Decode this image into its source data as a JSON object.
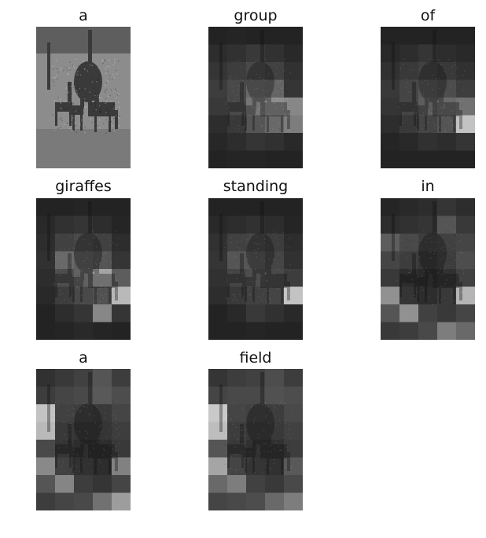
{
  "panels": [
    {
      "word": "a",
      "kind": "photo",
      "attention": []
    },
    {
      "word": "group",
      "kind": "attention",
      "attention": [
        [
          0.05,
          0.06,
          0.05,
          0.05,
          0.05
        ],
        [
          0.1,
          0.12,
          0.16,
          0.12,
          0.08
        ],
        [
          0.14,
          0.18,
          0.24,
          0.2,
          0.12
        ],
        [
          0.18,
          0.24,
          0.4,
          0.38,
          0.14
        ],
        [
          0.16,
          0.24,
          0.46,
          0.58,
          0.55
        ],
        [
          0.1,
          0.16,
          0.3,
          0.4,
          0.5
        ],
        [
          0.07,
          0.1,
          0.14,
          0.12,
          0.08
        ],
        [
          0.05,
          0.06,
          0.06,
          0.05,
          0.05
        ]
      ]
    },
    {
      "word": "of",
      "kind": "attention",
      "attention": [
        [
          0.05,
          0.05,
          0.05,
          0.05,
          0.05
        ],
        [
          0.08,
          0.1,
          0.14,
          0.1,
          0.08
        ],
        [
          0.12,
          0.16,
          0.2,
          0.16,
          0.12
        ],
        [
          0.16,
          0.22,
          0.3,
          0.26,
          0.18
        ],
        [
          0.14,
          0.22,
          0.34,
          0.4,
          0.44
        ],
        [
          0.1,
          0.16,
          0.22,
          0.3,
          0.85
        ],
        [
          0.06,
          0.08,
          0.12,
          0.1,
          0.14
        ],
        [
          0.05,
          0.05,
          0.05,
          0.05,
          0.05
        ]
      ]
    },
    {
      "word": "giraffes",
      "kind": "attention",
      "attention": [
        [
          0.05,
          0.05,
          0.06,
          0.05,
          0.05
        ],
        [
          0.08,
          0.12,
          0.14,
          0.1,
          0.06
        ],
        [
          0.1,
          0.2,
          0.24,
          0.2,
          0.1
        ],
        [
          0.12,
          0.4,
          0.34,
          0.3,
          0.14
        ],
        [
          0.1,
          0.26,
          0.36,
          0.7,
          0.34
        ],
        [
          0.08,
          0.18,
          0.24,
          0.28,
          0.8
        ],
        [
          0.05,
          0.1,
          0.14,
          0.55,
          0.14
        ],
        [
          0.05,
          0.06,
          0.08,
          0.06,
          0.05
        ]
      ]
    },
    {
      "word": "standing",
      "kind": "attention",
      "attention": [
        [
          0.05,
          0.05,
          0.05,
          0.05,
          0.05
        ],
        [
          0.08,
          0.1,
          0.12,
          0.1,
          0.06
        ],
        [
          0.12,
          0.2,
          0.22,
          0.18,
          0.1
        ],
        [
          0.14,
          0.3,
          0.3,
          0.22,
          0.12
        ],
        [
          0.12,
          0.22,
          0.26,
          0.24,
          0.18
        ],
        [
          0.1,
          0.16,
          0.2,
          0.22,
          0.85
        ],
        [
          0.05,
          0.08,
          0.16,
          0.12,
          0.08
        ],
        [
          0.05,
          0.05,
          0.06,
          0.05,
          0.05
        ]
      ]
    },
    {
      "word": "in",
      "kind": "attention",
      "attention": [
        [
          0.06,
          0.08,
          0.1,
          0.14,
          0.1
        ],
        [
          0.1,
          0.12,
          0.14,
          0.3,
          0.16
        ],
        [
          0.34,
          0.24,
          0.18,
          0.2,
          0.22
        ],
        [
          0.22,
          0.18,
          0.14,
          0.18,
          0.26
        ],
        [
          0.16,
          0.1,
          0.08,
          0.12,
          0.2
        ],
        [
          0.6,
          0.14,
          0.1,
          0.16,
          0.78
        ],
        [
          0.3,
          0.6,
          0.2,
          0.16,
          0.22
        ],
        [
          0.16,
          0.18,
          0.24,
          0.5,
          0.4
        ]
      ]
    },
    {
      "word": "a",
      "kind": "attention",
      "attention": [
        [
          0.12,
          0.16,
          0.2,
          0.3,
          0.18
        ],
        [
          0.18,
          0.22,
          0.24,
          0.32,
          0.26
        ],
        [
          0.85,
          0.2,
          0.18,
          0.16,
          0.22
        ],
        [
          0.8,
          0.16,
          0.14,
          0.14,
          0.18
        ],
        [
          0.24,
          0.14,
          0.1,
          0.1,
          0.16
        ],
        [
          0.56,
          0.2,
          0.12,
          0.1,
          0.52
        ],
        [
          0.3,
          0.54,
          0.18,
          0.14,
          0.22
        ],
        [
          0.18,
          0.22,
          0.24,
          0.44,
          0.66
        ]
      ]
    },
    {
      "word": "field",
      "kind": "attention",
      "attention": [
        [
          0.14,
          0.18,
          0.2,
          0.26,
          0.18
        ],
        [
          0.22,
          0.24,
          0.24,
          0.28,
          0.26
        ],
        [
          0.88,
          0.22,
          0.2,
          0.18,
          0.24
        ],
        [
          0.82,
          0.18,
          0.16,
          0.16,
          0.2
        ],
        [
          0.3,
          0.16,
          0.12,
          0.12,
          0.18
        ],
        [
          0.7,
          0.22,
          0.14,
          0.12,
          0.32
        ],
        [
          0.4,
          0.5,
          0.2,
          0.16,
          0.24
        ],
        [
          0.22,
          0.24,
          0.26,
          0.4,
          0.5
        ]
      ]
    }
  ]
}
